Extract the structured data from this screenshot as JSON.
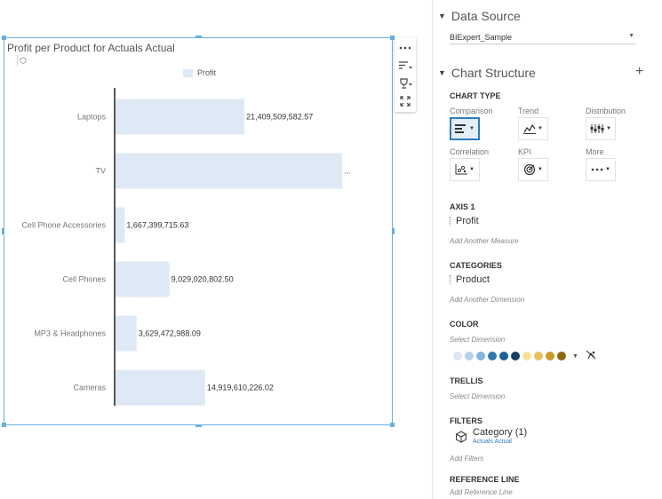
{
  "chart": {
    "title": "Profit per Product for Actuals Actual",
    "legend_label": "Profit",
    "bar_color": "#dfe9f5"
  },
  "chart_data": {
    "type": "bar",
    "orientation": "horizontal",
    "categories": [
      "Laptops",
      "TV",
      "Cell Phone Accessories",
      "Cell Phones",
      "MP3 & Headphones",
      "Cameras"
    ],
    "values": [
      21409509582.57,
      37500000000,
      1667399715.63,
      9029020802.5,
      3629472988.09,
      14919610226.02
    ],
    "data_labels": [
      "21,409,509,582.57",
      "...",
      "1,667,399,715.63",
      "9,029,020,802.50",
      "3,629,472,988.09",
      "14,919,610,226.02"
    ],
    "series": [
      {
        "name": "Profit"
      }
    ],
    "legend_position": "top",
    "grid": false
  },
  "toolbar": {
    "icons": [
      "more-icon",
      "sort-icon",
      "rank-icon",
      "fullscreen-icon"
    ]
  },
  "panel": {
    "data_source": {
      "title": "Data Source",
      "value": "BIExpert_Sample"
    },
    "chart_structure": {
      "title": "Chart Structure",
      "chart_type_label": "CHART TYPE",
      "types": [
        {
          "label": "Comparison",
          "icon": "bar-chart-icon",
          "active": true
        },
        {
          "label": "Trend",
          "icon": "line-chart-icon",
          "active": false
        },
        {
          "label": "Distribution",
          "icon": "distribution-icon",
          "active": false
        },
        {
          "label": "Correlation",
          "icon": "scatter-icon",
          "active": false
        },
        {
          "label": "KPI",
          "icon": "kpi-target-icon",
          "active": false
        },
        {
          "label": "More",
          "icon": "more-icon",
          "active": false
        }
      ]
    },
    "axis1": {
      "label": "AXIS 1",
      "measure": "Profit",
      "hint": "Add Another Measure"
    },
    "categories": {
      "label": "CATEGORIES",
      "dimension": "Product",
      "hint": "Add Another Dimension"
    },
    "color": {
      "label": "COLOR",
      "hint": "Select Dimension",
      "palette": [
        "#dce7f2",
        "#b6d2ea",
        "#83b5dc",
        "#2f77ad",
        "#1e5f95",
        "#123e68",
        "#f7e29d",
        "#e6c15a",
        "#c79a2b",
        "#8c6a13"
      ]
    },
    "trellis": {
      "label": "TRELLIS",
      "hint": "Select Dimension"
    },
    "filters": {
      "label": "FILTERS",
      "item": "Category (1)",
      "item_sub": "Actuals Actual",
      "hint": "Add Filters"
    },
    "reference_line": {
      "label": "REFERENCE LINE",
      "hint": "Add Reference Line"
    }
  }
}
